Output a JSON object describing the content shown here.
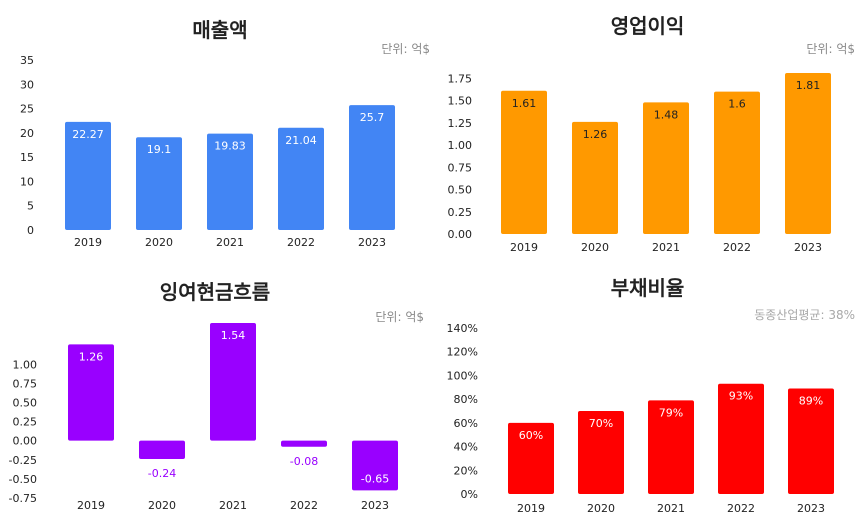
{
  "chart_data": [
    {
      "type": "bar",
      "title": "매출액",
      "unit": "단위: 억$",
      "categories": [
        "2019",
        "2020",
        "2021",
        "2022",
        "2023"
      ],
      "values": [
        22.27,
        19.1,
        19.83,
        21.04,
        25.7
      ],
      "labels": [
        "22.27",
        "19.1",
        "19.83",
        "21.04",
        "25.7"
      ],
      "yticks": [
        "0",
        "5",
        "10",
        "15",
        "20",
        "25",
        "30",
        "35"
      ],
      "ylim": [
        0,
        35
      ],
      "color": "#4285f4",
      "label_color": "#ffffff",
      "grid": false
    },
    {
      "type": "bar",
      "title": "영업이익",
      "unit": "단위: 억$",
      "categories": [
        "2019",
        "2020",
        "2021",
        "2022",
        "2023"
      ],
      "values": [
        1.61,
        1.26,
        1.48,
        1.6,
        1.81
      ],
      "labels": [
        "1.61",
        "1.26",
        "1.48",
        "1.6",
        "1.81"
      ],
      "yticks": [
        "0.00",
        "0.25",
        "0.50",
        "0.75",
        "1.00",
        "1.25",
        "1.50",
        "1.75"
      ],
      "ylim": [
        0,
        1.81
      ],
      "color": "#ff9900",
      "label_color": "#222222",
      "grid": false
    },
    {
      "type": "bar",
      "title": "잉여현금흐름",
      "unit": "단위: 억$",
      "categories": [
        "2019",
        "2020",
        "2021",
        "2022",
        "2023"
      ],
      "values": [
        1.26,
        -0.24,
        1.54,
        -0.08,
        -0.65
      ],
      "labels": [
        "1.26",
        "-0.24",
        "1.54",
        "-0.08",
        "-0.65"
      ],
      "yticks": [
        "-0.75",
        "-0.50",
        "-0.25",
        "0.00",
        "0.25",
        "0.50",
        "0.75",
        "1.00"
      ],
      "ylim": [
        -0.75,
        1.54
      ],
      "color": "#9900ff",
      "label_color": "#ffffff",
      "neg_label_color": "#9900ff",
      "grid": false
    },
    {
      "type": "bar",
      "title": "부채비율",
      "unit": "동종산업평균: 38%",
      "categories": [
        "2019",
        "2020",
        "2021",
        "2022",
        "2023"
      ],
      "values": [
        60,
        70,
        79,
        93,
        89
      ],
      "labels": [
        "60%",
        "70%",
        "79%",
        "93%",
        "89%"
      ],
      "yticks": [
        "0%",
        "20%",
        "40%",
        "60%",
        "80%",
        "100%",
        "120%",
        "140%"
      ],
      "ylim": [
        0,
        140
      ],
      "color": "#ff0000",
      "label_color": "#ffffff",
      "grid": false
    }
  ]
}
